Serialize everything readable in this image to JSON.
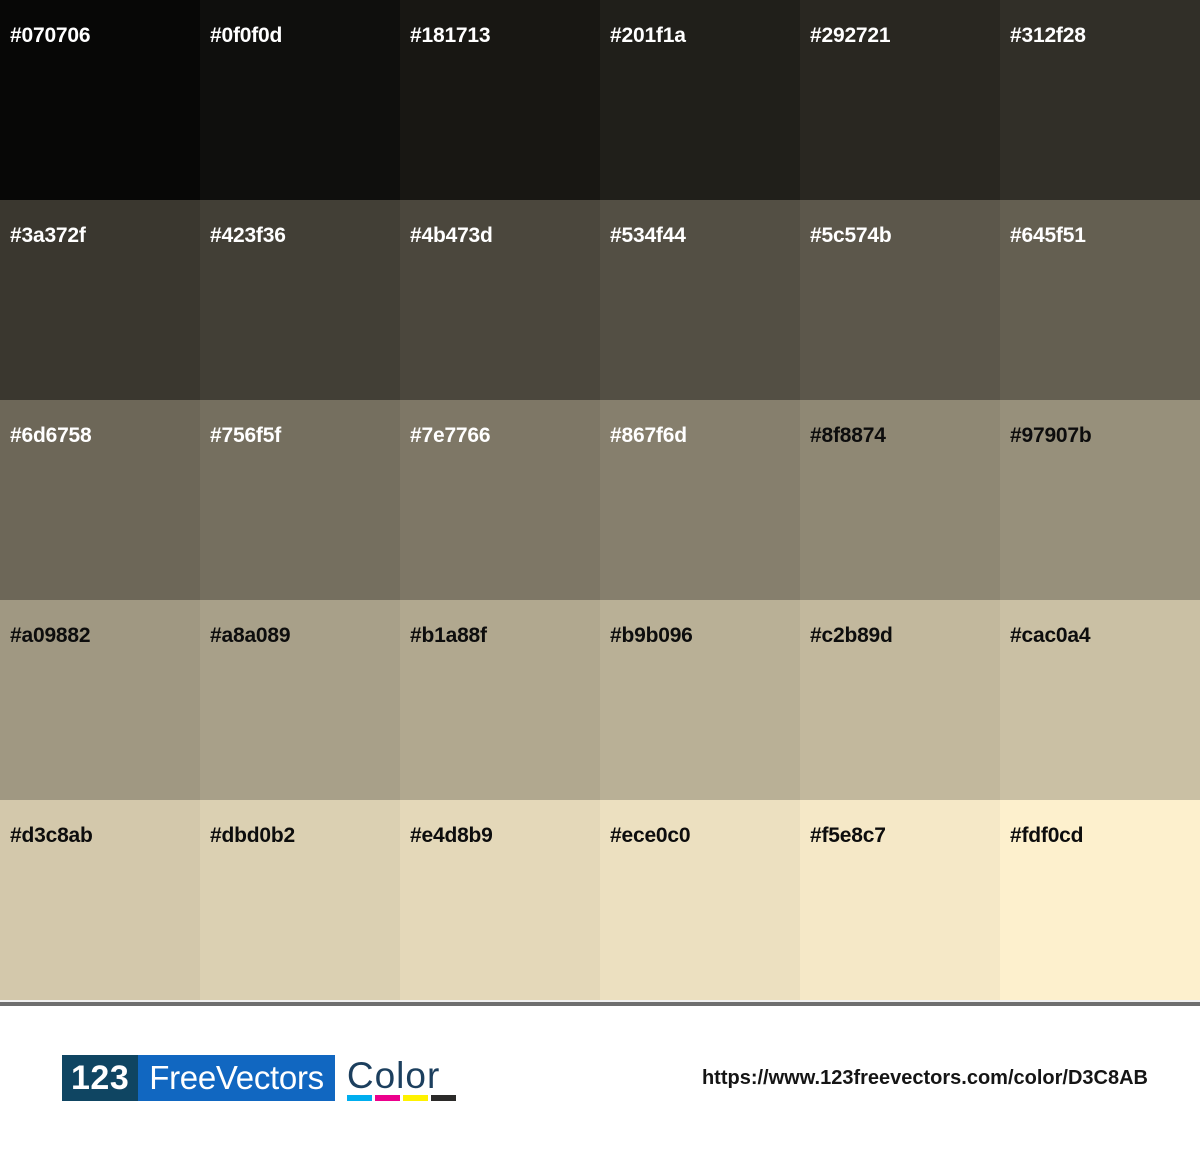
{
  "palette": {
    "grid": {
      "rows": 5,
      "columns": 6
    },
    "swatches": [
      {
        "hex": "#070706",
        "text_color": "#ffffff"
      },
      {
        "hex": "#0f0f0d",
        "text_color": "#ffffff"
      },
      {
        "hex": "#181713",
        "text_color": "#ffffff"
      },
      {
        "hex": "#201f1a",
        "text_color": "#ffffff"
      },
      {
        "hex": "#292721",
        "text_color": "#ffffff"
      },
      {
        "hex": "#312f28",
        "text_color": "#ffffff"
      },
      {
        "hex": "#3a372f",
        "text_color": "#ffffff"
      },
      {
        "hex": "#423f36",
        "text_color": "#ffffff"
      },
      {
        "hex": "#4b473d",
        "text_color": "#ffffff"
      },
      {
        "hex": "#534f44",
        "text_color": "#ffffff"
      },
      {
        "hex": "#5c574b",
        "text_color": "#ffffff"
      },
      {
        "hex": "#645f51",
        "text_color": "#ffffff"
      },
      {
        "hex": "#6d6758",
        "text_color": "#ffffff"
      },
      {
        "hex": "#756f5f",
        "text_color": "#ffffff"
      },
      {
        "hex": "#7e7766",
        "text_color": "#ffffff"
      },
      {
        "hex": "#867f6d",
        "text_color": "#ffffff"
      },
      {
        "hex": "#8f8874",
        "text_color": "#0d0d0d"
      },
      {
        "hex": "#97907b",
        "text_color": "#0d0d0d"
      },
      {
        "hex": "#a09882",
        "text_color": "#0d0d0d"
      },
      {
        "hex": "#a8a089",
        "text_color": "#0d0d0d"
      },
      {
        "hex": "#b1a88f",
        "text_color": "#0d0d0d"
      },
      {
        "hex": "#b9b096",
        "text_color": "#0d0d0d"
      },
      {
        "hex": "#c2b89d",
        "text_color": "#0d0d0d"
      },
      {
        "hex": "#cac0a4",
        "text_color": "#0d0d0d"
      },
      {
        "hex": "#d3c8ab",
        "text_color": "#0d0d0d"
      },
      {
        "hex": "#dbd0b2",
        "text_color": "#0d0d0d"
      },
      {
        "hex": "#e4d8b9",
        "text_color": "#0d0d0d"
      },
      {
        "hex": "#ece0c0",
        "text_color": "#0d0d0d"
      },
      {
        "hex": "#f5e8c7",
        "text_color": "#0d0d0d"
      },
      {
        "hex": "#fdf0cd",
        "text_color": "#0d0d0d"
      }
    ]
  },
  "footer": {
    "logo": {
      "number": "123",
      "name": "FreeVectors",
      "word": "Color"
    },
    "cmyk_bars": [
      {
        "name": "cyan",
        "color": "#00aeef"
      },
      {
        "name": "magenta",
        "color": "#ec008c"
      },
      {
        "name": "yellow",
        "color": "#fff200"
      },
      {
        "name": "black",
        "color": "#2b2a29"
      }
    ],
    "url": "https://www.123freevectors.com/color/D3C8AB"
  },
  "colors": {
    "logo_number_box_bg": "#0f4562",
    "logo_name_box_bg": "#1167c1",
    "logo_word_text": "#1c3f5e",
    "url_text": "#151515",
    "divider_light": "#f0f0f0",
    "divider_dark": "#6e6e6e",
    "footer_bg": "#ffffff"
  }
}
